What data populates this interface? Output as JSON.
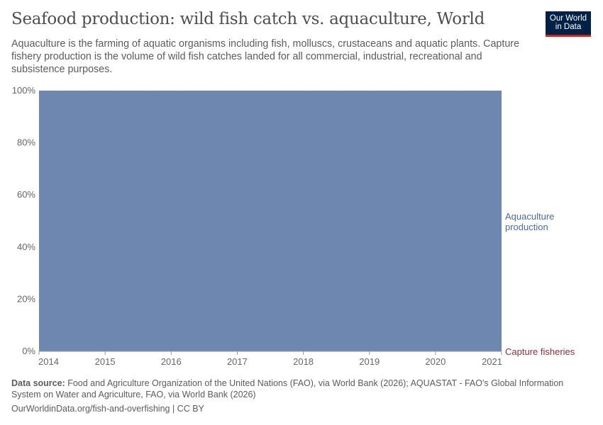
{
  "header": {
    "title": "Seafood production: wild fish catch vs. aquaculture, World",
    "subtitle": "Aquaculture is the farming of aquatic organisms including fish, molluscs, crustaceans and aquatic plants. Capture fishery production is the volume of wild fish catches landed for all commercial, industrial, recreational and subsistence purposes.",
    "logo": "Our World in Data"
  },
  "footer": {
    "source_label": "Data source:",
    "source": "Food and Agriculture Organization of the United Nations (FAO), via World Bank (2026); AQUASTAT - FAO's Global Information System on Water and Agriculture, FAO, via World Bank (2026)",
    "url": "OurWorldinData.org/fish-and-overfishing | CC BY"
  },
  "chart_data": {
    "type": "area",
    "stacked": true,
    "relative": true,
    "x": [
      2014,
      2015,
      2016,
      2017,
      2018,
      2019,
      2020,
      2021
    ],
    "yticks": [
      "0%",
      "20%",
      "40%",
      "60%",
      "80%",
      "100%"
    ],
    "ylim": [
      0,
      100
    ],
    "grid": "horizontal dashed",
    "legend": "right, inline labels",
    "series": [
      {
        "name": "Capture fisheries",
        "color": "#883039",
        "values": [
          0,
          0,
          0,
          0,
          0,
          0,
          0,
          0
        ]
      },
      {
        "name": "Aquaculture production",
        "color": "#6d87b0",
        "values": [
          100,
          100,
          100,
          100,
          100,
          100,
          100,
          100
        ]
      }
    ]
  }
}
